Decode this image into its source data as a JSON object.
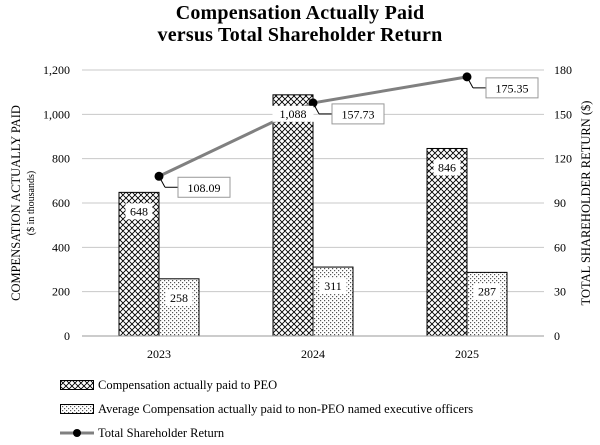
{
  "chart_data": {
    "type": "bar+line",
    "title": [
      "Compensation Actually Paid",
      "versus Total Shareholder Return"
    ],
    "categories": [
      "2023",
      "2024",
      "2025"
    ],
    "ylabel_left": "COMPENSATION ACTUALLY PAID",
    "ylabel_left_sub": "($ in thousands)",
    "ylabel_right": "TOTAL SHAREHOLDER RETURN ($)",
    "ylim_left": [
      0,
      1200
    ],
    "yticks_left": [
      "0",
      "200",
      "400",
      "600",
      "800",
      "1,000",
      "1,200"
    ],
    "ylim_right": [
      0,
      180
    ],
    "yticks_right": [
      "0",
      "30",
      "60",
      "90",
      "120",
      "150",
      "180"
    ],
    "grid": "horizontal",
    "series": [
      {
        "name": "Compensation actually paid to PEO",
        "kind": "bar",
        "axis": "left",
        "pattern": "crosshatch",
        "values": [
          648,
          1088,
          846
        ],
        "labels": [
          "648",
          "1,088",
          "846"
        ]
      },
      {
        "name": "Average Compensation actually paid to non-PEO named executive officers",
        "kind": "bar",
        "axis": "left",
        "pattern": "dotted",
        "values": [
          258,
          311,
          287
        ],
        "labels": [
          "258",
          "311",
          "287"
        ]
      },
      {
        "name": "Total Shareholder Return",
        "kind": "line",
        "axis": "right",
        "color": "#808080",
        "values": [
          108.09,
          157.73,
          175.35
        ],
        "labels": [
          "108.09",
          "157.73",
          "175.35"
        ]
      }
    ]
  }
}
